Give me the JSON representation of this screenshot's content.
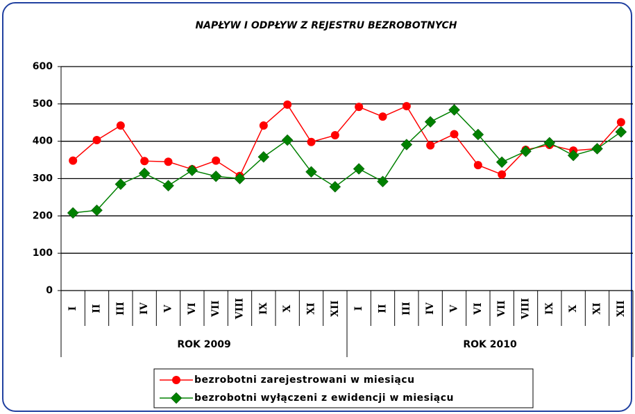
{
  "chart_data": {
    "type": "line",
    "title": "NAPŁYW I ODPŁYW Z REJESTRU BEZROBOTNYCH",
    "categories": [
      "I",
      "II",
      "III",
      "IV",
      "V",
      "VI",
      "VII",
      "VIII",
      "IX",
      "X",
      "XI",
      "XII",
      "I",
      "II",
      "III",
      "IV",
      "V",
      "VI",
      "VII",
      "VIII",
      "IX",
      "X",
      "XI",
      "XII"
    ],
    "groups": [
      "ROK 2009",
      "ROK 2010"
    ],
    "series": [
      {
        "name": "bezrobotni zarejestrowani w miesiącu",
        "color": "#ff0000",
        "marker": "circle",
        "values": [
          348,
          403,
          442,
          347,
          345,
          325,
          348,
          307,
          442,
          498,
          398,
          416,
          492,
          466,
          494,
          389,
          419,
          336,
          311,
          377,
          390,
          375,
          380,
          451
        ]
      },
      {
        "name": "bezrobotni wyłączeni z ewidencji w miesiącu",
        "color": "#008000",
        "marker": "diamond",
        "values": [
          208,
          215,
          285,
          314,
          281,
          322,
          306,
          300,
          358,
          403,
          318,
          278,
          326,
          292,
          391,
          452,
          484,
          418,
          344,
          373,
          396,
          362,
          380,
          425
        ]
      }
    ],
    "ylim": [
      0,
      600
    ],
    "yticks": [
      0,
      100,
      200,
      300,
      400,
      500,
      600
    ],
    "grid": true
  }
}
